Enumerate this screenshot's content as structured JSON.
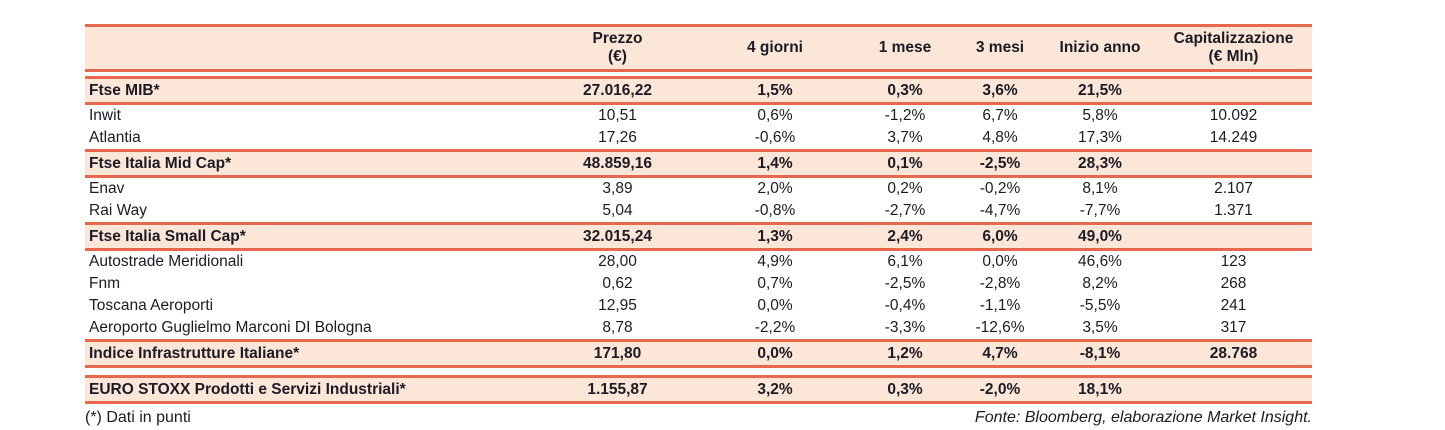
{
  "table": {
    "columns": [
      {
        "key": "name",
        "label": ""
      },
      {
        "key": "prezzo",
        "label": "Prezzo\n(€)"
      },
      {
        "key": "g4",
        "label": "4 giorni"
      },
      {
        "key": "m1",
        "label": "1 mese"
      },
      {
        "key": "m3",
        "label": "3 mesi"
      },
      {
        "key": "inizio",
        "label": "Inizio anno"
      },
      {
        "key": "cap",
        "label": "Capitalizzazione\n(€ Mln)"
      }
    ],
    "rows": [
      {
        "type": "index",
        "name": "Ftse MIB*",
        "prezzo": "27.016,22",
        "g4": "1,5%",
        "m1": "0,3%",
        "m3": "3,6%",
        "inizio": "21,5%",
        "cap": ""
      },
      {
        "type": "stock",
        "name": "Inwit",
        "prezzo": "10,51",
        "g4": "0,6%",
        "m1": "-1,2%",
        "m3": "6,7%",
        "inizio": "5,8%",
        "cap": "10.092"
      },
      {
        "type": "stock",
        "name": "Atlantia",
        "prezzo": "17,26",
        "g4": "-0,6%",
        "m1": "3,7%",
        "m3": "4,8%",
        "inizio": "17,3%",
        "cap": "14.249"
      },
      {
        "type": "index",
        "name": "Ftse Italia Mid Cap*",
        "prezzo": "48.859,16",
        "g4": "1,4%",
        "m1": "0,1%",
        "m3": "-2,5%",
        "inizio": "28,3%",
        "cap": ""
      },
      {
        "type": "stock",
        "name": "Enav",
        "prezzo": "3,89",
        "g4": "2,0%",
        "m1": "0,2%",
        "m3": "-0,2%",
        "inizio": "8,1%",
        "cap": "2.107"
      },
      {
        "type": "stock",
        "name": "Rai Way",
        "prezzo": "5,04",
        "g4": "-0,8%",
        "m1": "-2,7%",
        "m3": "-4,7%",
        "inizio": "-7,7%",
        "cap": "1.371"
      },
      {
        "type": "index",
        "name": "Ftse Italia Small Cap*",
        "prezzo": "32.015,24",
        "g4": "1,3%",
        "m1": "2,4%",
        "m3": "6,0%",
        "inizio": "49,0%",
        "cap": ""
      },
      {
        "type": "stock",
        "name": "Autostrade Meridionali",
        "prezzo": "28,00",
        "g4": "4,9%",
        "m1": "6,1%",
        "m3": "0,0%",
        "inizio": "46,6%",
        "cap": "123"
      },
      {
        "type": "stock",
        "name": "Fnm",
        "prezzo": "0,62",
        "g4": "0,7%",
        "m1": "-2,5%",
        "m3": "-2,8%",
        "inizio": "8,2%",
        "cap": "268"
      },
      {
        "type": "stock",
        "name": "Toscana Aeroporti",
        "prezzo": "12,95",
        "g4": "0,0%",
        "m1": "-0,4%",
        "m3": "-1,1%",
        "inizio": "-5,5%",
        "cap": "241"
      },
      {
        "type": "stock",
        "name": "Aeroporto Guglielmo Marconi DI Bologna",
        "prezzo": "8,78",
        "g4": "-2,2%",
        "m1": "-3,3%",
        "m3": "-12,6%",
        "inizio": "3,5%",
        "cap": "317"
      },
      {
        "type": "index",
        "name": "Indice Infrastrutture Italiane*",
        "prezzo": "171,80",
        "g4": "0,0%",
        "m1": "1,2%",
        "m3": "4,7%",
        "inizio": "-8,1%",
        "cap": "28.768"
      }
    ],
    "euro_row": {
      "type": "index",
      "name": "EURO STOXX Prodotti e Servizi Industriali*",
      "prezzo": "1.155,87",
      "g4": "3,2%",
      "m1": "0,3%",
      "m3": "-2,0%",
      "inizio": "18,1%",
      "cap": ""
    }
  },
  "footer": {
    "note": "(*) Dati in punti",
    "source": "Fonte: Bloomberg, elaborazione Market Insight."
  },
  "colors": {
    "divider_line": "#E8684E",
    "highlight_row_bg": "#FBE6D7",
    "text_ink": "#1B1B26",
    "page_bg": "#FFFFFF"
  }
}
